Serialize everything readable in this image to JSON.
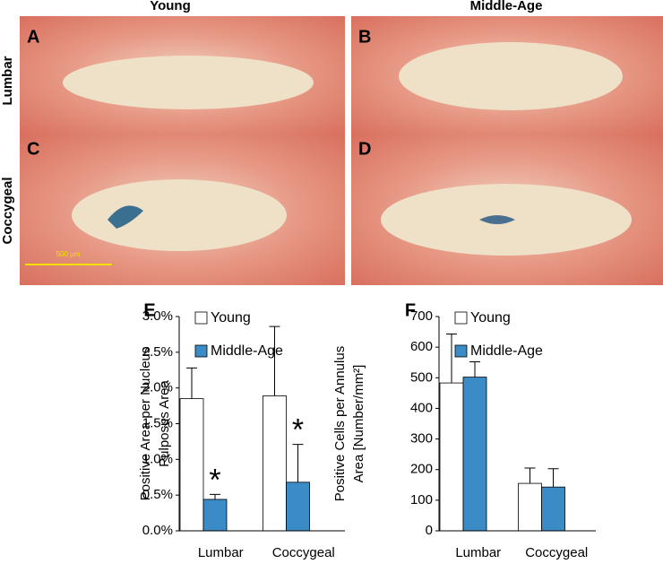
{
  "figure": {
    "columns": [
      "Young",
      "Middle-Age"
    ],
    "rows": [
      "Lumbar",
      "Coccygeal"
    ],
    "panels": [
      "A",
      "B",
      "C",
      "D"
    ],
    "scale_bar": "500 µm"
  },
  "chart_data": [
    {
      "type": "bar",
      "panel": "E",
      "ylabel": [
        "Positive Area per Nucleus",
        "Pulposus Area"
      ],
      "categories": [
        "Lumbar",
        "Coccygeal"
      ],
      "series": [
        {
          "name": "Young",
          "color": "#ffffff",
          "values": [
            1.85,
            1.89
          ],
          "errors": [
            0.43,
            0.97
          ]
        },
        {
          "name": "Middle-Age",
          "color": "#3b8cc6",
          "values": [
            0.44,
            0.68
          ],
          "errors": [
            0.07,
            0.53
          ],
          "significance": [
            "*",
            "*"
          ]
        }
      ],
      "ylim": [
        0,
        3
      ],
      "yticks": [
        {
          "value": 0,
          "label": "0.0%"
        },
        {
          "value": 0.5,
          "label": "0.5%"
        },
        {
          "value": 1,
          "label": "1.0%"
        },
        {
          "value": 1.5,
          "label": "1.5%"
        },
        {
          "value": 2,
          "label": "2.0%"
        },
        {
          "value": 2.5,
          "label": "2.5%"
        },
        {
          "value": 3,
          "label": "3.0%"
        }
      ],
      "legend": "upper left"
    },
    {
      "type": "bar",
      "panel": "F",
      "ylabel": [
        "Positive Cells per Annulus",
        "Area [Number/mm²]"
      ],
      "categories": [
        "Lumbar",
        "Coccygeal"
      ],
      "series": [
        {
          "name": "Young",
          "color": "#ffffff",
          "values": [
            483,
            155
          ],
          "errors": [
            160,
            50
          ]
        },
        {
          "name": "Middle-Age",
          "color": "#3b8cc6",
          "values": [
            502,
            143
          ],
          "errors": [
            50,
            60
          ]
        }
      ],
      "ylim": [
        0,
        700
      ],
      "yticks": [
        0,
        100,
        200,
        300,
        400,
        500,
        600,
        700
      ],
      "legend": "upper left"
    }
  ]
}
